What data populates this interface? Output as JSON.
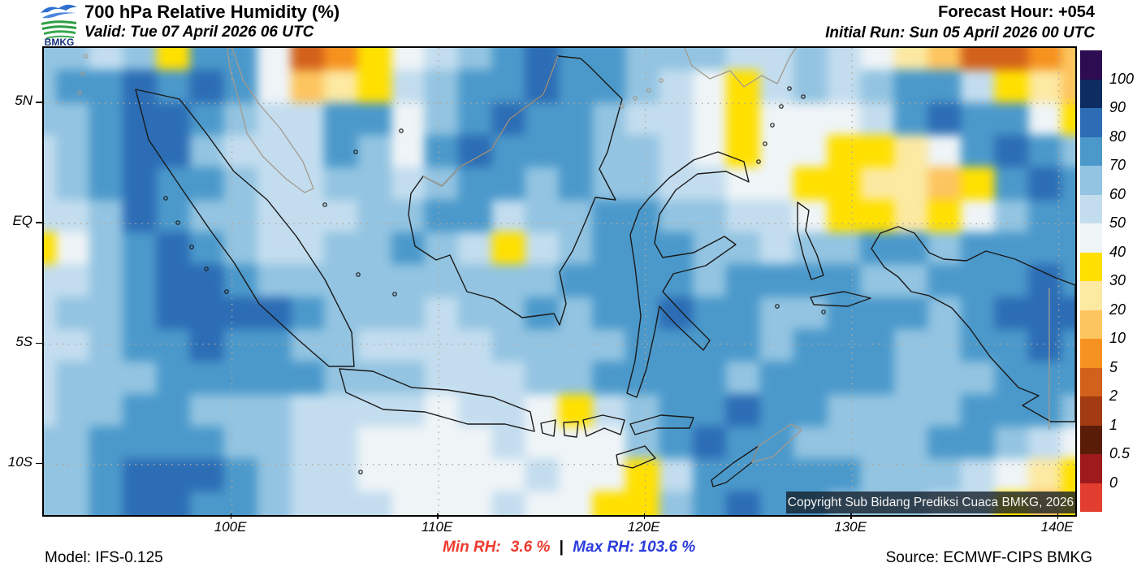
{
  "header": {
    "logo_text": "BMKG",
    "title": "700 hPa Relative Humidity (%)",
    "valid": "Valid: Tue 07 April 2026 06 UTC",
    "forecast_hour": "Forecast Hour: +054",
    "initial_run": "Initial Run: Sun 05 April 2026 00 UTC"
  },
  "map": {
    "copyright": "Copyright Sub Bidang Prediksi Cuaca BMKG, 2026",
    "extent": {
      "lon_min": 90.9,
      "lon_max": 140.8,
      "lat_min": -12.1,
      "lat_max": 7.3
    },
    "x_ticks": [
      {
        "label": "100E",
        "lon": 100
      },
      {
        "label": "110E",
        "lon": 110
      },
      {
        "label": "120E",
        "lon": 120
      },
      {
        "label": "130E",
        "lon": 130
      },
      {
        "label": "140E",
        "lon": 140
      }
    ],
    "y_ticks": [
      {
        "label": "5N",
        "lat": 5
      },
      {
        "label": "EQ",
        "lat": 0
      },
      {
        "label": "5S",
        "lat": -5
      },
      {
        "label": "10S",
        "lat": -10
      }
    ]
  },
  "colorbar": {
    "labels_top_to_bottom": [
      "100",
      "90",
      "80",
      "70",
      "60",
      "50",
      "40",
      "30",
      "20",
      "10",
      "5",
      "2",
      "1",
      "0.5",
      "0"
    ],
    "colors_top_to_bottom": [
      "#2d0c52",
      "#0d2c62",
      "#2c6db5",
      "#4b99cb",
      "#93c4e1",
      "#c3ddef",
      "#eff4f7",
      "#ffe000",
      "#fce9a2",
      "#fdc55f",
      "#f6921f",
      "#d2611b",
      "#a33b12",
      "#591d07",
      "#9e1a1d",
      "#e23e2f"
    ]
  },
  "footer": {
    "model": "Model: IFS-0.125",
    "min_label": "Min RH:",
    "min_value": "3.6 %",
    "separator": "|",
    "max_label": "Max RH:",
    "max_value": "103.6 %",
    "source": "Source: ECMWF-CIPS BMKG",
    "min_color": "#ee3a2e",
    "max_color": "#2b3cdc"
  },
  "chart_data": {
    "type": "heatmap",
    "title": "700 hPa Relative Humidity (%)",
    "units": "%",
    "levels": [
      0,
      0.5,
      1,
      2,
      5,
      10,
      20,
      30,
      40,
      50,
      60,
      70,
      80,
      90,
      100
    ],
    "lon_range": [
      90.9,
      140.8
    ],
    "lat_range": [
      -12.1,
      7.3
    ],
    "min_rh": 3.6,
    "max_rh": 103.6,
    "grid_rows": 15,
    "grid_cols": 32,
    "values": [
      [
        65,
        62,
        58,
        65,
        35,
        78,
        72,
        40,
        3,
        8,
        35,
        45,
        55,
        68,
        75,
        88,
        75,
        72,
        68,
        65,
        60,
        50,
        55,
        60,
        50,
        40,
        25,
        12,
        4,
        3,
        8,
        12
      ],
      [
        68,
        72,
        72,
        80,
        75,
        85,
        78,
        40,
        15,
        25,
        38,
        58,
        60,
        70,
        78,
        85,
        78,
        70,
        62,
        55,
        45,
        38,
        55,
        60,
        55,
        65,
        78,
        75,
        50,
        35,
        20,
        15
      ],
      [
        62,
        68,
        70,
        85,
        80,
        75,
        65,
        58,
        55,
        72,
        75,
        45,
        60,
        78,
        82,
        78,
        70,
        60,
        55,
        50,
        40,
        32,
        48,
        45,
        42,
        55,
        75,
        80,
        78,
        72,
        45,
        32
      ],
      [
        55,
        60,
        78,
        88,
        82,
        68,
        58,
        52,
        50,
        70,
        60,
        45,
        75,
        88,
        72,
        70,
        72,
        65,
        60,
        55,
        48,
        38,
        45,
        40,
        35,
        30,
        28,
        40,
        75,
        82,
        78,
        60
      ],
      [
        58,
        62,
        72,
        85,
        78,
        70,
        62,
        58,
        55,
        60,
        65,
        50,
        65,
        78,
        70,
        68,
        70,
        65,
        62,
        58,
        50,
        45,
        45,
        38,
        32,
        25,
        22,
        15,
        35,
        70,
        80,
        75
      ],
      [
        55,
        50,
        65,
        80,
        75,
        68,
        60,
        55,
        52,
        58,
        62,
        68,
        72,
        70,
        55,
        60,
        65,
        70,
        72,
        68,
        60,
        55,
        50,
        45,
        38,
        30,
        25,
        30,
        40,
        60,
        72,
        78
      ],
      [
        35,
        45,
        60,
        75,
        80,
        72,
        65,
        58,
        55,
        60,
        65,
        70,
        68,
        55,
        38,
        55,
        68,
        75,
        78,
        72,
        65,
        60,
        55,
        60,
        65,
        70,
        72,
        68,
        72,
        75,
        78,
        72
      ],
      [
        50,
        55,
        62,
        72,
        85,
        80,
        72,
        65,
        60,
        62,
        65,
        68,
        65,
        60,
        62,
        68,
        72,
        78,
        75,
        70,
        68,
        72,
        78,
        75,
        70,
        65,
        62,
        70,
        75,
        72,
        80,
        75
      ],
      [
        55,
        60,
        68,
        78,
        80,
        85,
        88,
        80,
        70,
        65,
        62,
        60,
        58,
        60,
        65,
        70,
        68,
        72,
        78,
        82,
        75,
        70,
        65,
        68,
        72,
        78,
        72,
        68,
        75,
        80,
        85,
        88
      ],
      [
        52,
        58,
        62,
        70,
        78,
        82,
        78,
        72,
        65,
        60,
        58,
        55,
        52,
        55,
        60,
        65,
        62,
        68,
        72,
        75,
        78,
        72,
        68,
        72,
        75,
        72,
        68,
        65,
        70,
        75,
        80,
        78
      ],
      [
        55,
        60,
        65,
        68,
        72,
        75,
        78,
        75,
        70,
        68,
        65,
        62,
        58,
        55,
        58,
        62,
        68,
        70,
        72,
        75,
        72,
        68,
        72,
        75,
        78,
        72,
        68,
        65,
        68,
        72,
        78,
        72
      ],
      [
        58,
        62,
        68,
        72,
        70,
        68,
        65,
        62,
        58,
        55,
        52,
        50,
        48,
        50,
        55,
        48,
        35,
        55,
        65,
        72,
        78,
        80,
        75,
        72,
        68,
        65,
        62,
        65,
        70,
        75,
        72,
        68
      ],
      [
        62,
        68,
        72,
        78,
        75,
        70,
        65,
        60,
        55,
        52,
        48,
        45,
        42,
        45,
        50,
        45,
        42,
        48,
        68,
        78,
        82,
        78,
        72,
        68,
        65,
        62,
        65,
        70,
        72,
        68,
        50,
        45
      ],
      [
        60,
        65,
        72,
        85,
        88,
        82,
        72,
        65,
        58,
        52,
        48,
        45,
        42,
        45,
        48,
        50,
        45,
        40,
        35,
        55,
        72,
        78,
        75,
        70,
        72,
        68,
        65,
        62,
        58,
        40,
        25,
        35
      ],
      [
        62,
        68,
        75,
        82,
        85,
        78,
        70,
        62,
        58,
        55,
        52,
        48,
        45,
        48,
        52,
        48,
        42,
        38,
        30,
        60,
        75,
        80,
        78,
        72,
        68,
        65,
        62,
        58,
        55,
        35,
        15,
        30
      ]
    ]
  }
}
